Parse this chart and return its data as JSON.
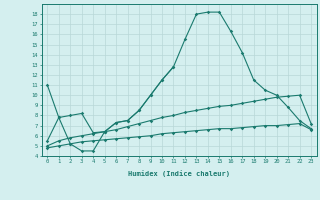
{
  "xlabel": "Humidex (Indice chaleur)",
  "x_values": [
    0,
    1,
    2,
    3,
    4,
    5,
    6,
    7,
    8,
    9,
    10,
    11,
    12,
    13,
    14,
    15,
    16,
    17,
    18,
    19,
    20,
    21,
    22,
    23
  ],
  "curve_main": [
    11.0,
    7.8,
    5.2,
    4.5,
    4.5,
    6.4,
    7.3,
    7.5,
    8.5,
    10.0,
    11.5,
    12.8,
    15.5,
    18.0,
    18.2,
    18.2,
    16.3,
    14.2,
    11.5,
    10.5,
    10.0,
    8.8,
    7.5,
    6.7
  ],
  "curve_upper": [
    5.5,
    7.8,
    8.0,
    8.2,
    6.3,
    6.4,
    7.3,
    7.5,
    8.5,
    10.0,
    11.5,
    12.8,
    null,
    null,
    null,
    null,
    null,
    null,
    null,
    null,
    null,
    null,
    null,
    null
  ],
  "curve_mid": [
    5.0,
    5.5,
    5.8,
    6.0,
    6.2,
    6.4,
    6.6,
    6.9,
    7.2,
    7.5,
    7.8,
    8.0,
    8.3,
    8.5,
    8.7,
    8.9,
    9.0,
    9.2,
    9.4,
    9.6,
    9.8,
    9.9,
    10.0,
    7.2
  ],
  "curve_low": [
    4.8,
    5.0,
    5.2,
    5.4,
    5.5,
    5.6,
    5.7,
    5.8,
    5.9,
    6.0,
    6.2,
    6.3,
    6.4,
    6.5,
    6.6,
    6.7,
    6.7,
    6.8,
    6.9,
    7.0,
    7.0,
    7.1,
    7.2,
    6.6
  ],
  "line_color": "#1a7a6e",
  "bg_color": "#d4efef",
  "grid_color": "#b8d8d8",
  "ylim": [
    4,
    19
  ],
  "xlim": [
    -0.5,
    23.5
  ],
  "yticks": [
    4,
    5,
    6,
    7,
    8,
    9,
    10,
    11,
    12,
    13,
    14,
    15,
    16,
    17,
    18
  ],
  "xticks": [
    0,
    1,
    2,
    3,
    4,
    5,
    6,
    7,
    8,
    9,
    10,
    11,
    12,
    13,
    14,
    15,
    16,
    17,
    18,
    19,
    20,
    21,
    22,
    23
  ]
}
